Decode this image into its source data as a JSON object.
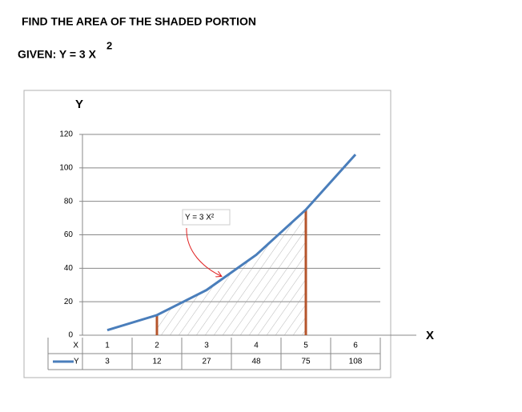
{
  "heading": "FIND THE AREA OF THE SHADED PORTION",
  "given": "GIVEN:  Y = 3 X",
  "given_exponent": "2",
  "chart_data": {
    "type": "line",
    "y_label": "Y",
    "x_label": "X",
    "categories": [
      "1",
      "2",
      "3",
      "4",
      "5",
      "6"
    ],
    "series": [
      {
        "name": "Y",
        "color": "#4a7ebb",
        "values": [
          3,
          12,
          27,
          48,
          75,
          108
        ]
      }
    ],
    "ylim": [
      0,
      120
    ],
    "yticks": [
      0,
      20,
      40,
      60,
      80,
      100,
      120
    ],
    "grid": true,
    "annotation": "Y = 3 X²",
    "shaded_between": [
      "2",
      "5"
    ],
    "bound_color": "#b5552c"
  }
}
